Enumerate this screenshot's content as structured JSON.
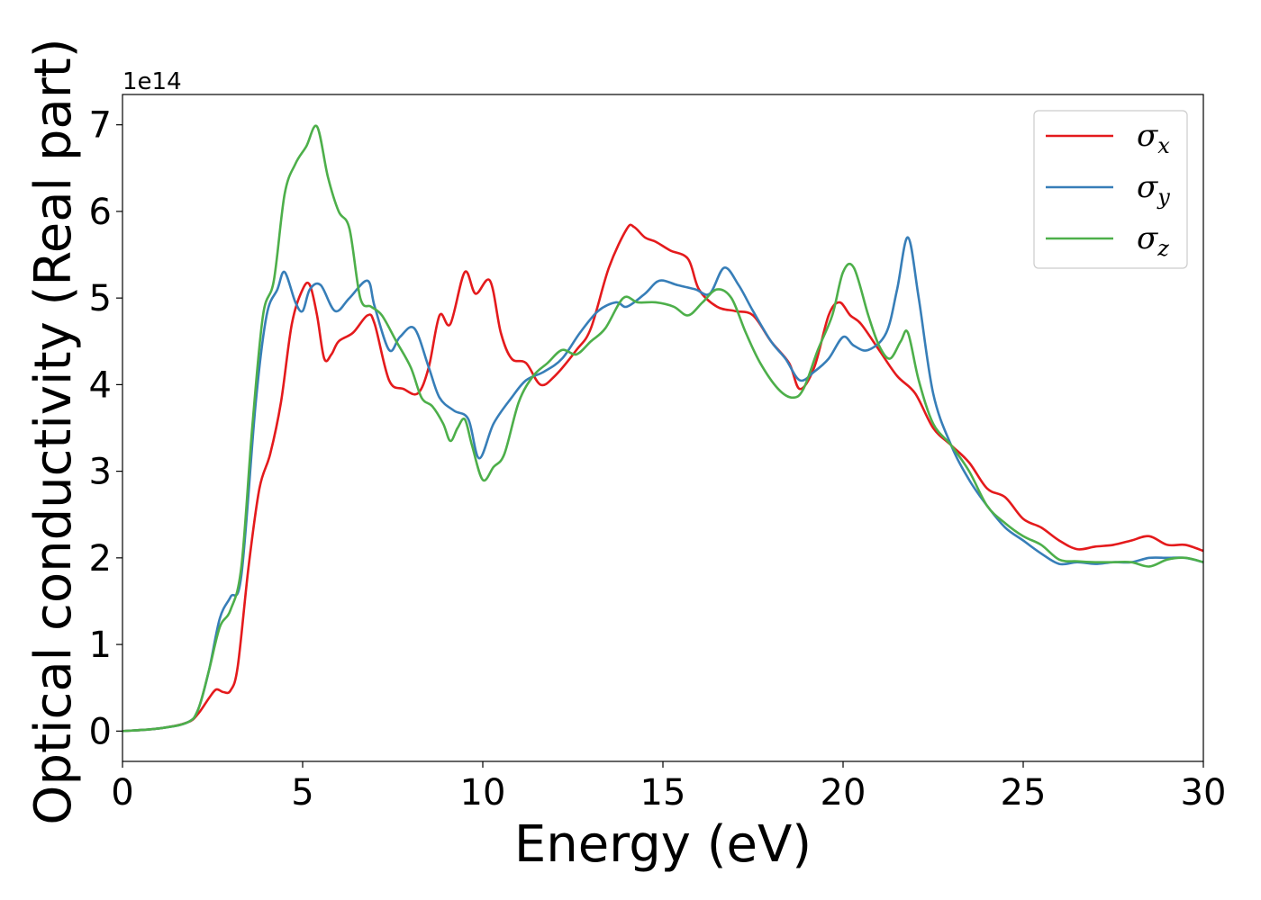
{
  "chart_data": {
    "type": "line",
    "title": "",
    "xlabel": "Energy (eV)",
    "ylabel": "Optical conductivity (Real part)",
    "y_offset_label": "1e14",
    "xlim": [
      0,
      30
    ],
    "ylim": [
      -0.35,
      7.35
    ],
    "xticks": [
      0,
      5,
      10,
      15,
      20,
      25,
      30
    ],
    "yticks": [
      0,
      1,
      2,
      3,
      4,
      5,
      6,
      7
    ],
    "grid": false,
    "legend_position": "top-right",
    "series": [
      {
        "name": "σx",
        "legend_symbol": "σ",
        "legend_sub": "x",
        "color": "#e41a1c",
        "x": [
          0,
          1.0,
          1.8,
          2.1,
          2.4,
          2.6,
          2.8,
          3.0,
          3.2,
          3.5,
          3.8,
          4.1,
          4.4,
          4.7,
          5.0,
          5.2,
          5.4,
          5.6,
          5.8,
          6.0,
          6.4,
          6.8,
          7.0,
          7.4,
          7.8,
          8.2,
          8.5,
          8.8,
          9.1,
          9.5,
          9.8,
          10.2,
          10.5,
          10.8,
          11.2,
          11.6,
          12.0,
          12.6,
          13.0,
          13.5,
          14.0,
          14.2,
          14.5,
          14.8,
          15.2,
          15.7,
          16.0,
          16.5,
          17.0,
          17.5,
          18.0,
          18.5,
          18.8,
          19.2,
          19.6,
          19.9,
          20.2,
          20.5,
          21.0,
          21.5,
          22.0,
          22.5,
          23.0,
          23.5,
          24.0,
          24.5,
          25.0,
          25.5,
          26.0,
          26.5,
          27.0,
          27.5,
          28.0,
          28.5,
          29.0,
          29.5,
          30.0
        ],
        "values": [
          0,
          0.03,
          0.1,
          0.2,
          0.38,
          0.48,
          0.45,
          0.47,
          0.75,
          1.9,
          2.8,
          3.2,
          3.8,
          4.7,
          5.1,
          5.15,
          4.8,
          4.3,
          4.35,
          4.5,
          4.6,
          4.8,
          4.7,
          4.05,
          3.95,
          3.9,
          4.2,
          4.8,
          4.7,
          5.3,
          5.05,
          5.2,
          4.6,
          4.3,
          4.25,
          4.0,
          4.1,
          4.4,
          4.65,
          5.35,
          5.8,
          5.82,
          5.7,
          5.65,
          5.55,
          5.45,
          5.1,
          4.9,
          4.85,
          4.8,
          4.5,
          4.25,
          3.95,
          4.2,
          4.8,
          4.95,
          4.8,
          4.7,
          4.4,
          4.1,
          3.9,
          3.5,
          3.3,
          3.1,
          2.8,
          2.7,
          2.45,
          2.35,
          2.2,
          2.1,
          2.13,
          2.15,
          2.2,
          2.25,
          2.15,
          2.15,
          2.08
        ]
      },
      {
        "name": "σy",
        "legend_symbol": "σ",
        "legend_sub": "y",
        "color": "#377eb8",
        "x": [
          0,
          1.0,
          1.8,
          2.1,
          2.4,
          2.7,
          3.0,
          3.3,
          3.7,
          4.0,
          4.3,
          4.5,
          4.8,
          5.0,
          5.2,
          5.5,
          5.9,
          6.3,
          6.8,
          7.0,
          7.4,
          7.7,
          8.1,
          8.5,
          8.8,
          9.2,
          9.6,
          9.9,
          10.3,
          10.8,
          11.2,
          11.7,
          12.2,
          12.7,
          13.2,
          13.7,
          14.0,
          14.5,
          14.9,
          15.4,
          15.9,
          16.3,
          16.7,
          17.1,
          17.5,
          18.0,
          18.4,
          18.8,
          19.2,
          19.6,
          20.0,
          20.3,
          20.7,
          21.2,
          21.5,
          21.8,
          22.1,
          22.5,
          23.0,
          23.5,
          24.0,
          24.5,
          25.0,
          25.5,
          26.0,
          26.5,
          27.0,
          27.5,
          28.0,
          28.5,
          29.0,
          29.5,
          30.0
        ],
        "values": [
          0,
          0.03,
          0.1,
          0.25,
          0.7,
          1.3,
          1.55,
          1.8,
          3.8,
          4.8,
          5.1,
          5.3,
          4.95,
          4.85,
          5.1,
          5.15,
          4.85,
          5.0,
          5.2,
          4.9,
          4.4,
          4.55,
          4.65,
          4.2,
          3.85,
          3.7,
          3.6,
          3.15,
          3.55,
          3.85,
          4.05,
          4.15,
          4.3,
          4.6,
          4.85,
          4.95,
          4.9,
          5.05,
          5.2,
          5.15,
          5.1,
          5.05,
          5.35,
          5.15,
          4.85,
          4.5,
          4.3,
          4.05,
          4.15,
          4.3,
          4.55,
          4.45,
          4.4,
          4.6,
          5.1,
          5.7,
          5.0,
          3.9,
          3.3,
          2.9,
          2.6,
          2.35,
          2.2,
          2.05,
          1.93,
          1.95,
          1.93,
          1.95,
          1.95,
          2.0,
          2.0,
          2.0,
          1.95
        ]
      },
      {
        "name": "σz",
        "legend_symbol": "σ",
        "legend_sub": "z",
        "color": "#4daf4a",
        "x": [
          0,
          1.0,
          1.8,
          2.1,
          2.4,
          2.7,
          3.0,
          3.3,
          3.6,
          3.9,
          4.2,
          4.5,
          4.8,
          5.1,
          5.4,
          5.7,
          6.0,
          6.3,
          6.6,
          6.9,
          7.2,
          7.6,
          8.0,
          8.3,
          8.6,
          8.9,
          9.1,
          9.3,
          9.5,
          9.7,
          10.0,
          10.3,
          10.6,
          11.0,
          11.4,
          11.8,
          12.2,
          12.6,
          13.0,
          13.4,
          13.9,
          14.3,
          14.8,
          15.3,
          15.7,
          16.1,
          16.5,
          16.9,
          17.3,
          17.7,
          18.2,
          18.6,
          18.9,
          19.3,
          19.7,
          20.0,
          20.3,
          20.7,
          21.0,
          21.3,
          21.6,
          21.8,
          22.1,
          22.5,
          23.0,
          23.5,
          24.0,
          24.5,
          25.0,
          25.5,
          26.0,
          26.5,
          27.0,
          27.5,
          28.0,
          28.5,
          29.0,
          29.5,
          30.0
        ],
        "values": [
          0,
          0.03,
          0.1,
          0.25,
          0.7,
          1.2,
          1.4,
          1.9,
          3.5,
          4.8,
          5.2,
          6.2,
          6.55,
          6.75,
          6.98,
          6.4,
          6.0,
          5.8,
          5.0,
          4.9,
          4.8,
          4.5,
          4.2,
          3.85,
          3.75,
          3.55,
          3.35,
          3.5,
          3.6,
          3.3,
          2.9,
          3.05,
          3.2,
          3.8,
          4.1,
          4.25,
          4.4,
          4.35,
          4.5,
          4.65,
          5.0,
          4.95,
          4.95,
          4.9,
          4.8,
          4.95,
          5.1,
          5.0,
          4.6,
          4.25,
          3.95,
          3.85,
          3.95,
          4.4,
          4.8,
          5.3,
          5.35,
          4.8,
          4.45,
          4.3,
          4.5,
          4.6,
          4.05,
          3.55,
          3.3,
          3.0,
          2.6,
          2.4,
          2.25,
          2.15,
          1.98,
          1.96,
          1.95,
          1.95,
          1.95,
          1.9,
          1.98,
          2.0,
          1.95
        ]
      }
    ]
  }
}
